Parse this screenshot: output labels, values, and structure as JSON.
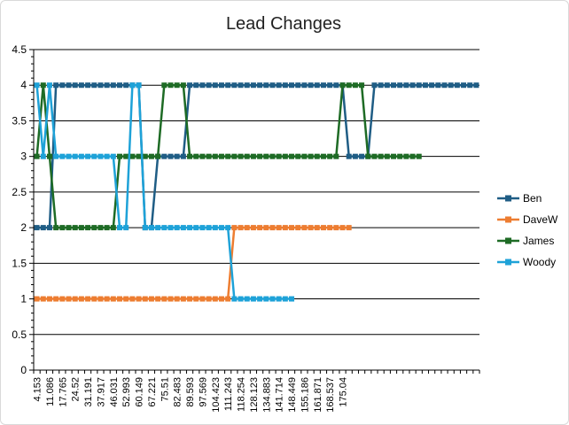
{
  "chart_data": {
    "type": "line",
    "title": "Lead Changes",
    "xlabel": "",
    "ylabel": "",
    "ylim": [
      0,
      4.5
    ],
    "yticks": [
      0,
      0.5,
      1,
      1.5,
      2,
      2.5,
      3,
      3.5,
      4,
      4.5
    ],
    "x_labels": [
      "4.153",
      "11.086",
      "17.765",
      "24.52",
      "31.191",
      "37.917",
      "46.031",
      "52.993",
      "60.149",
      "67.221",
      "75.51",
      "82.483",
      "89.593",
      "97.569",
      "104.423",
      "111.243",
      "118.254",
      "128.123",
      "134.883",
      "141.714",
      "148.449",
      "155.186",
      "161.871",
      "168.537",
      "175.04"
    ],
    "grid": "horizontal",
    "legend_position": "right",
    "series": [
      {
        "name": "Ben",
        "color": "#1f5d85",
        "values": [
          2,
          2,
          2,
          4,
          4,
          4,
          4,
          4,
          4,
          4,
          4,
          4,
          4,
          4,
          4,
          4,
          4,
          2,
          2,
          3,
          3,
          3,
          3,
          3,
          4,
          4,
          4,
          4,
          4,
          4,
          4,
          4,
          4,
          4,
          4,
          4,
          4,
          4,
          4,
          4,
          4,
          4,
          4,
          4,
          4,
          4,
          4,
          4,
          4,
          3,
          3,
          3,
          3,
          4,
          4,
          4,
          4,
          4,
          4,
          4,
          4,
          4,
          4,
          4,
          4,
          4,
          4,
          4,
          4,
          4
        ]
      },
      {
        "name": "DaveW",
        "color": "#ed7d31",
        "values": [
          1,
          1,
          1,
          1,
          1,
          1,
          1,
          1,
          1,
          1,
          1,
          1,
          1,
          1,
          1,
          1,
          1,
          1,
          1,
          1,
          1,
          1,
          1,
          1,
          1,
          1,
          1,
          1,
          1,
          1,
          1,
          2,
          2,
          2,
          2,
          2,
          2,
          2,
          2,
          2,
          2,
          2,
          2,
          2,
          2,
          2,
          2,
          2,
          2,
          2
        ]
      },
      {
        "name": "James",
        "color": "#1e6b25",
        "values": [
          3,
          4,
          3,
          2,
          2,
          2,
          2,
          2,
          2,
          2,
          2,
          2,
          2,
          3,
          3,
          3,
          3,
          3,
          3,
          3,
          4,
          4,
          4,
          4,
          3,
          3,
          3,
          3,
          3,
          3,
          3,
          3,
          3,
          3,
          3,
          3,
          3,
          3,
          3,
          3,
          3,
          3,
          3,
          3,
          3,
          3,
          3,
          3,
          4,
          4,
          4,
          4,
          3,
          3,
          3,
          3,
          3,
          3,
          3,
          3,
          3
        ]
      },
      {
        "name": "Woody",
        "color": "#1ea2d8",
        "values": [
          4,
          3,
          4,
          3,
          3,
          3,
          3,
          3,
          3,
          3,
          3,
          3,
          3,
          2,
          2,
          4,
          4,
          2,
          2,
          2,
          2,
          2,
          2,
          2,
          2,
          2,
          2,
          2,
          2,
          2,
          2,
          1,
          1,
          1,
          1,
          1,
          1,
          1,
          1,
          1,
          1
        ]
      }
    ]
  }
}
